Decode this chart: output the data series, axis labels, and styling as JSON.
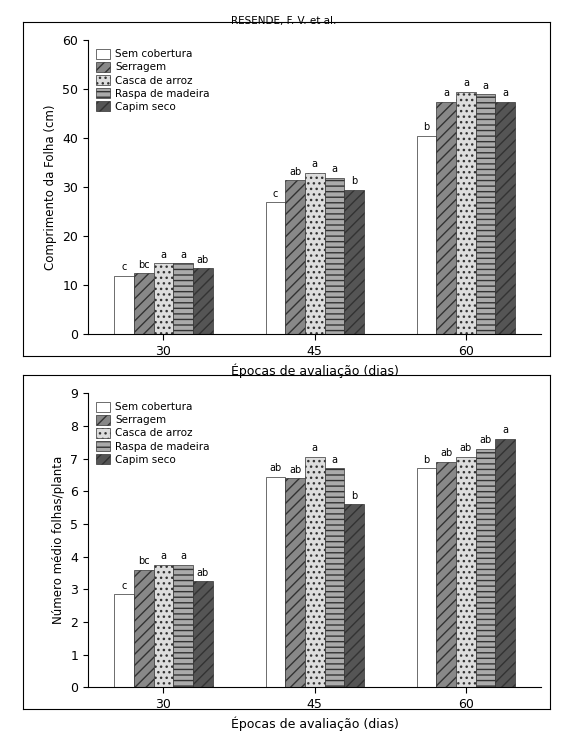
{
  "header": "RESENDE, F. V. et al.",
  "chart1": {
    "ylabel": "Comprimento da Folha (cm)",
    "xlabel": "Épocas de avaliação (dias)",
    "ylim": [
      0,
      60
    ],
    "yticks": [
      0,
      10,
      20,
      30,
      40,
      50,
      60
    ],
    "groups": [
      "30",
      "45",
      "60"
    ],
    "series": [
      {
        "label": "Sem cobertura",
        "values": [
          12.0,
          27.0,
          40.5
        ],
        "hatch": "",
        "facecolor": "#ffffff",
        "edgecolor": "#333333"
      },
      {
        "label": "Serragem",
        "values": [
          12.5,
          31.5,
          47.5
        ],
        "hatch": "///",
        "facecolor": "#888888",
        "edgecolor": "#333333"
      },
      {
        "label": "Casca de arroz",
        "values": [
          14.5,
          33.0,
          49.5
        ],
        "hatch": "...",
        "facecolor": "#dddddd",
        "edgecolor": "#333333"
      },
      {
        "label": "Raspa de madeira",
        "values": [
          14.5,
          32.0,
          49.0
        ],
        "hatch": "---",
        "facecolor": "#aaaaaa",
        "edgecolor": "#333333"
      },
      {
        "label": "Capim seco",
        "values": [
          13.5,
          29.5,
          47.5
        ],
        "hatch": "///",
        "facecolor": "#555555",
        "edgecolor": "#333333"
      }
    ],
    "annotations": [
      [
        "c",
        "bc",
        "a",
        "a",
        "ab"
      ],
      [
        "c",
        "ab",
        "a",
        "a",
        "b"
      ],
      [
        "b",
        "a",
        "a",
        "a",
        "a"
      ]
    ]
  },
  "chart2": {
    "ylabel": "Número médio folhas/planta",
    "xlabel": "Épocas de avaliação (dias)",
    "ylim": [
      0,
      9
    ],
    "yticks": [
      0,
      1,
      2,
      3,
      4,
      5,
      6,
      7,
      8,
      9
    ],
    "groups": [
      "30",
      "45",
      "60"
    ],
    "series": [
      {
        "label": "Sem cobertura",
        "values": [
          2.85,
          6.45,
          6.7
        ],
        "hatch": "",
        "facecolor": "#ffffff",
        "edgecolor": "#333333"
      },
      {
        "label": "Serragem",
        "values": [
          3.6,
          6.4,
          6.9
        ],
        "hatch": "///",
        "facecolor": "#888888",
        "edgecolor": "#333333"
      },
      {
        "label": "Casca de arroz",
        "values": [
          3.75,
          7.05,
          7.05
        ],
        "hatch": "...",
        "facecolor": "#dddddd",
        "edgecolor": "#333333"
      },
      {
        "label": "Raspa de madeira",
        "values": [
          3.75,
          6.7,
          7.3
        ],
        "hatch": "---",
        "facecolor": "#aaaaaa",
        "edgecolor": "#333333"
      },
      {
        "label": "Capim seco",
        "values": [
          3.25,
          5.6,
          7.6
        ],
        "hatch": "///",
        "facecolor": "#555555",
        "edgecolor": "#333333"
      }
    ],
    "annotations": [
      [
        "c",
        "bc",
        "a",
        "a",
        "ab"
      ],
      [
        "ab",
        "ab",
        "a",
        "a",
        "b"
      ],
      [
        "b",
        "ab",
        "ab",
        "ab",
        "a"
      ]
    ]
  }
}
